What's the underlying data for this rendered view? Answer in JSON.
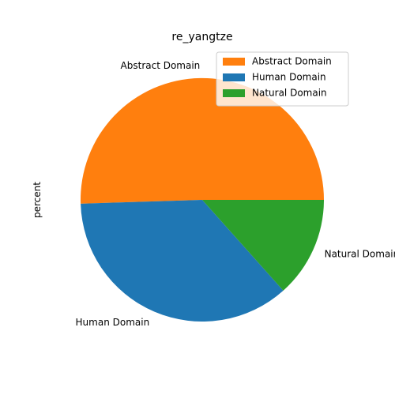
{
  "chart_data": {
    "type": "pie",
    "title": "re_yangtze",
    "ylabel": "percent",
    "start_angle_deg": 0,
    "direction": "counterclockwise",
    "slices": [
      {
        "label": "Abstract Domain",
        "value": 50.5,
        "color": "#ff7f0e"
      },
      {
        "label": "Human Domain",
        "value": 36.1,
        "color": "#1f77b4"
      },
      {
        "label": "Natural Domain",
        "value": 13.4,
        "color": "#2ca02c"
      }
    ],
    "legend": {
      "position": "top-right",
      "entries": [
        "Abstract Domain",
        "Human Domain",
        "Natural Domain"
      ]
    }
  }
}
